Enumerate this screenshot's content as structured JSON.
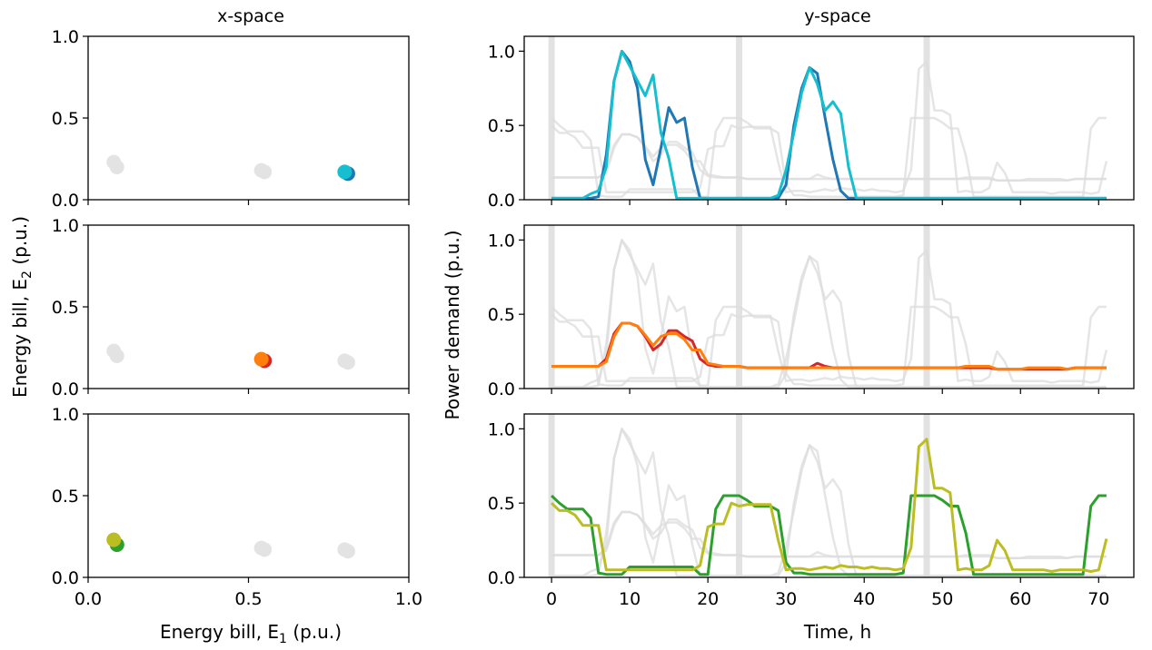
{
  "titles": {
    "left": "x-space",
    "right": "y-space"
  },
  "labels": {
    "left_ylabel": "Energy bill, E",
    "left_ylabel_sub": "2",
    "left_ylabel_tail": " (p.u.)",
    "left_xlabel": "Energy bill, E",
    "left_xlabel_sub": "1",
    "left_xlabel_tail": " (p.u.)",
    "right_ylabel": "Power demand (p.u.)",
    "right_xlabel": "Time, h"
  },
  "chart_data": [
    {
      "type": "scatter",
      "panel": "x-space row 1",
      "xlim": [
        0,
        1
      ],
      "ylim": [
        0,
        1
      ],
      "xticks": [
        "0.0",
        "0.5",
        "1.0"
      ],
      "yticks": [
        "0.0",
        "0.5",
        "1.0"
      ],
      "background_points": [
        [
          0.08,
          0.23
        ],
        [
          0.09,
          0.2
        ],
        [
          0.54,
          0.18
        ],
        [
          0.55,
          0.17
        ],
        [
          0.8,
          0.17
        ],
        [
          0.81,
          0.16
        ]
      ],
      "highlighted": [
        {
          "color": "#1f77b4",
          "x": 0.81,
          "y": 0.16
        },
        {
          "color": "#17becf",
          "x": 0.8,
          "y": 0.17
        }
      ]
    },
    {
      "type": "scatter",
      "panel": "x-space row 2",
      "xlim": [
        0,
        1
      ],
      "ylim": [
        0,
        1
      ],
      "xticks": [
        "0.0",
        "0.5",
        "1.0"
      ],
      "yticks": [
        "0.0",
        "0.5",
        "1.0"
      ],
      "background_points": [
        [
          0.08,
          0.23
        ],
        [
          0.09,
          0.2
        ],
        [
          0.54,
          0.18
        ],
        [
          0.55,
          0.17
        ],
        [
          0.8,
          0.17
        ],
        [
          0.81,
          0.16
        ]
      ],
      "highlighted": [
        {
          "color": "#d62728",
          "x": 0.55,
          "y": 0.17
        },
        {
          "color": "#ff7f0e",
          "x": 0.54,
          "y": 0.18
        }
      ]
    },
    {
      "type": "scatter",
      "panel": "x-space row 3",
      "xlim": [
        0,
        1
      ],
      "ylim": [
        0,
        1
      ],
      "xticks": [
        "0.0",
        "0.5",
        "1.0"
      ],
      "yticks": [
        "0.0",
        "0.5",
        "1.0"
      ],
      "background_points": [
        [
          0.08,
          0.23
        ],
        [
          0.09,
          0.2
        ],
        [
          0.54,
          0.18
        ],
        [
          0.55,
          0.17
        ],
        [
          0.8,
          0.17
        ],
        [
          0.81,
          0.16
        ]
      ],
      "highlighted": [
        {
          "color": "#2ca02c",
          "x": 0.09,
          "y": 0.2
        },
        {
          "color": "#bcbd22",
          "x": 0.08,
          "y": 0.23
        }
      ]
    },
    {
      "type": "line",
      "panel": "y-space row 1",
      "xlim": [
        -3.5,
        74.5
      ],
      "ylim": [
        0,
        1.1
      ],
      "xticks": [
        "0",
        "10",
        "20",
        "30",
        "40",
        "50",
        "60",
        "70"
      ],
      "yticks": [
        "0.0",
        "0.5",
        "1.0"
      ],
      "vlines": [
        0,
        24,
        48
      ],
      "series": [
        {
          "color": "#1f77b4",
          "y": [
            0.01,
            0.01,
            0.01,
            0.01,
            0.01,
            0.01,
            0.02,
            0.3,
            0.8,
            1.0,
            0.93,
            0.75,
            0.27,
            0.1,
            0.35,
            0.62,
            0.52,
            0.55,
            0.22,
            0.01,
            0.01,
            0.01,
            0.01,
            0.01,
            0.01,
            0.01,
            0.01,
            0.01,
            0.01,
            0.01,
            0.1,
            0.5,
            0.75,
            0.89,
            0.85,
            0.55,
            0.27,
            0.06,
            0.01,
            0.01,
            0.01,
            0.01,
            0.01,
            0.01,
            0.01,
            0.01,
            0.01,
            0.01,
            0.01,
            0.01,
            0.01,
            0.01,
            0.01,
            0.01,
            0.01,
            0.01,
            0.01,
            0.01,
            0.01,
            0.01,
            0.01,
            0.01,
            0.01,
            0.01,
            0.01,
            0.01,
            0.01,
            0.01,
            0.01,
            0.01,
            0.01,
            0.01
          ]
        },
        {
          "color": "#17becf",
          "y": [
            0.01,
            0.01,
            0.01,
            0.01,
            0.01,
            0.04,
            0.06,
            0.22,
            0.8,
            1.0,
            0.9,
            0.8,
            0.7,
            0.84,
            0.45,
            0.28,
            0.01,
            0.01,
            0.01,
            0.01,
            0.01,
            0.01,
            0.01,
            0.01,
            0.01,
            0.01,
            0.01,
            0.01,
            0.01,
            0.03,
            0.2,
            0.45,
            0.72,
            0.89,
            0.78,
            0.6,
            0.66,
            0.58,
            0.22,
            0.01,
            0.01,
            0.01,
            0.01,
            0.01,
            0.01,
            0.01,
            0.01,
            0.01,
            0.01,
            0.01,
            0.01,
            0.01,
            0.01,
            0.01,
            0.01,
            0.01,
            0.01,
            0.01,
            0.01,
            0.01,
            0.01,
            0.01,
            0.01,
            0.01,
            0.01,
            0.01,
            0.01,
            0.01,
            0.01,
            0.01,
            0.01,
            0.01
          ]
        }
      ]
    },
    {
      "type": "line",
      "panel": "y-space row 2",
      "xlim": [
        -3.5,
        74.5
      ],
      "ylim": [
        0,
        1.1
      ],
      "xticks": [
        "0",
        "10",
        "20",
        "30",
        "40",
        "50",
        "60",
        "70"
      ],
      "yticks": [
        "0.0",
        "0.5",
        "1.0"
      ],
      "vlines": [
        0,
        24,
        48
      ],
      "series": [
        {
          "color": "#d62728",
          "y": [
            0.15,
            0.15,
            0.15,
            0.15,
            0.15,
            0.15,
            0.15,
            0.2,
            0.37,
            0.44,
            0.44,
            0.42,
            0.35,
            0.26,
            0.3,
            0.39,
            0.39,
            0.35,
            0.32,
            0.2,
            0.16,
            0.15,
            0.15,
            0.15,
            0.15,
            0.14,
            0.14,
            0.14,
            0.14,
            0.14,
            0.14,
            0.14,
            0.14,
            0.14,
            0.17,
            0.15,
            0.14,
            0.14,
            0.14,
            0.14,
            0.14,
            0.14,
            0.14,
            0.14,
            0.14,
            0.14,
            0.14,
            0.14,
            0.14,
            0.14,
            0.14,
            0.14,
            0.14,
            0.14,
            0.14,
            0.14,
            0.14,
            0.13,
            0.13,
            0.13,
            0.13,
            0.13,
            0.13,
            0.13,
            0.13,
            0.13,
            0.13,
            0.14,
            0.14,
            0.14,
            0.14,
            0.14
          ]
        },
        {
          "color": "#ff7f0e",
          "y": [
            0.15,
            0.15,
            0.15,
            0.15,
            0.15,
            0.15,
            0.15,
            0.18,
            0.35,
            0.44,
            0.44,
            0.42,
            0.36,
            0.29,
            0.35,
            0.37,
            0.37,
            0.33,
            0.26,
            0.26,
            0.17,
            0.16,
            0.15,
            0.15,
            0.15,
            0.14,
            0.14,
            0.14,
            0.14,
            0.14,
            0.14,
            0.14,
            0.14,
            0.14,
            0.14,
            0.14,
            0.14,
            0.14,
            0.14,
            0.14,
            0.14,
            0.14,
            0.14,
            0.14,
            0.14,
            0.14,
            0.14,
            0.14,
            0.14,
            0.14,
            0.14,
            0.14,
            0.14,
            0.15,
            0.15,
            0.15,
            0.15,
            0.13,
            0.13,
            0.13,
            0.13,
            0.14,
            0.14,
            0.14,
            0.14,
            0.14,
            0.13,
            0.14,
            0.14,
            0.14,
            0.14,
            0.14
          ]
        }
      ]
    },
    {
      "type": "line",
      "panel": "y-space row 3",
      "xlim": [
        -3.5,
        74.5
      ],
      "ylim": [
        0,
        1.1
      ],
      "xticks": [
        "0",
        "10",
        "20",
        "30",
        "40",
        "50",
        "60",
        "70"
      ],
      "yticks": [
        "0.0",
        "0.5",
        "1.0"
      ],
      "vlines": [
        0,
        24,
        48
      ],
      "series": [
        {
          "color": "#2ca02c",
          "y": [
            0.55,
            0.5,
            0.46,
            0.46,
            0.46,
            0.4,
            0.03,
            0.02,
            0.02,
            0.02,
            0.07,
            0.07,
            0.07,
            0.07,
            0.07,
            0.07,
            0.07,
            0.07,
            0.07,
            0.02,
            0.02,
            0.46,
            0.55,
            0.55,
            0.55,
            0.52,
            0.48,
            0.48,
            0.48,
            0.45,
            0.1,
            0.03,
            0.03,
            0.02,
            0.02,
            0.02,
            0.02,
            0.02,
            0.02,
            0.02,
            0.02,
            0.02,
            0.02,
            0.02,
            0.02,
            0.03,
            0.55,
            0.55,
            0.55,
            0.55,
            0.52,
            0.48,
            0.48,
            0.3,
            0.02,
            0.02,
            0.02,
            0.02,
            0.02,
            0.02,
            0.02,
            0.02,
            0.02,
            0.02,
            0.02,
            0.02,
            0.02,
            0.02,
            0.02,
            0.48,
            0.55,
            0.55
          ]
        },
        {
          "color": "#bcbd22",
          "y": [
            0.5,
            0.45,
            0.45,
            0.42,
            0.35,
            0.35,
            0.35,
            0.05,
            0.05,
            0.05,
            0.05,
            0.05,
            0.05,
            0.05,
            0.05,
            0.05,
            0.05,
            0.05,
            0.05,
            0.08,
            0.34,
            0.36,
            0.36,
            0.5,
            0.48,
            0.49,
            0.49,
            0.49,
            0.49,
            0.25,
            0.05,
            0.06,
            0.06,
            0.05,
            0.06,
            0.07,
            0.06,
            0.08,
            0.07,
            0.07,
            0.06,
            0.07,
            0.06,
            0.06,
            0.05,
            0.06,
            0.2,
            0.88,
            0.93,
            0.6,
            0.6,
            0.57,
            0.05,
            0.06,
            0.05,
            0.05,
            0.08,
            0.25,
            0.18,
            0.05,
            0.05,
            0.05,
            0.05,
            0.05,
            0.04,
            0.05,
            0.05,
            0.05,
            0.05,
            0.04,
            0.05,
            0.26
          ]
        }
      ]
    }
  ],
  "background_series_color": "#dcdcdc"
}
